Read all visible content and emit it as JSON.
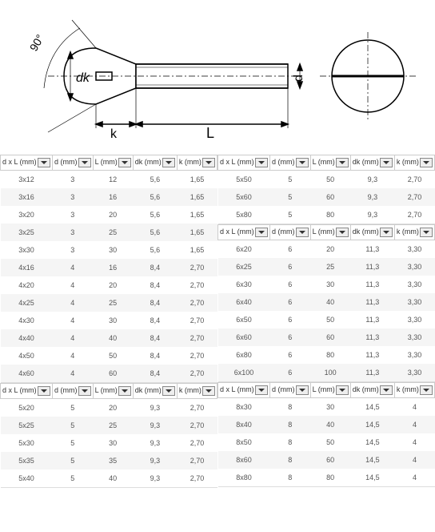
{
  "headers": [
    "d x L (mm)",
    "d (mm)",
    "L (mm)",
    "dk (mm)",
    "k (mm)"
  ],
  "diagram_labels": {
    "angle": "90°",
    "dk": "dk",
    "k": "k",
    "L": "L",
    "d": "d"
  },
  "tables": [
    [
      [
        "3x12",
        "3",
        "12",
        "5,6",
        "1,65"
      ],
      [
        "3x16",
        "3",
        "16",
        "5,6",
        "1,65"
      ],
      [
        "3x20",
        "3",
        "20",
        "5,6",
        "1,65"
      ],
      [
        "3x25",
        "3",
        "25",
        "5,6",
        "1,65"
      ],
      [
        "3x30",
        "3",
        "30",
        "5,6",
        "1,65"
      ],
      [
        "4x16",
        "4",
        "16",
        "8,4",
        "2,70"
      ],
      [
        "4x20",
        "4",
        "20",
        "8,4",
        "2,70"
      ],
      [
        "4x25",
        "4",
        "25",
        "8,4",
        "2,70"
      ],
      [
        "4x30",
        "4",
        "30",
        "8,4",
        "2,70"
      ],
      [
        "4x40",
        "4",
        "40",
        "8,4",
        "2,70"
      ],
      [
        "4x50",
        "4",
        "50",
        "8,4",
        "2,70"
      ],
      [
        "4x60",
        "4",
        "60",
        "8,4",
        "2,70"
      ]
    ],
    [
      [
        "5x50",
        "5",
        "50",
        "9,3",
        "2,70"
      ],
      [
        "5x60",
        "5",
        "60",
        "9,3",
        "2,70"
      ],
      [
        "5x80",
        "5",
        "80",
        "9,3",
        "2,70"
      ]
    ],
    [
      [
        "6x20",
        "6",
        "20",
        "11,3",
        "3,30"
      ],
      [
        "6x25",
        "6",
        "25",
        "11,3",
        "3,30"
      ],
      [
        "6x30",
        "6",
        "30",
        "11,3",
        "3,30"
      ],
      [
        "6x40",
        "6",
        "40",
        "11,3",
        "3,30"
      ],
      [
        "6x50",
        "6",
        "50",
        "11,3",
        "3,30"
      ],
      [
        "6x60",
        "6",
        "60",
        "11,3",
        "3,30"
      ],
      [
        "6x80",
        "6",
        "80",
        "11,3",
        "3,30"
      ],
      [
        "6x100",
        "6",
        "100",
        "11,3",
        "3,30"
      ]
    ],
    [
      [
        "5x20",
        "5",
        "20",
        "9,3",
        "2,70"
      ],
      [
        "5x25",
        "5",
        "25",
        "9,3",
        "2,70"
      ],
      [
        "5x30",
        "5",
        "30",
        "9,3",
        "2,70"
      ],
      [
        "5x35",
        "5",
        "35",
        "9,3",
        "2,70"
      ],
      [
        "5x40",
        "5",
        "40",
        "9,3",
        "2,70"
      ]
    ],
    [
      [
        "8x30",
        "8",
        "30",
        "14,5",
        "4"
      ],
      [
        "8x40",
        "8",
        "40",
        "14,5",
        "4"
      ],
      [
        "8x50",
        "8",
        "50",
        "14,5",
        "4"
      ],
      [
        "8x60",
        "8",
        "60",
        "14,5",
        "4"
      ],
      [
        "8x80",
        "8",
        "80",
        "14,5",
        "4"
      ]
    ]
  ]
}
